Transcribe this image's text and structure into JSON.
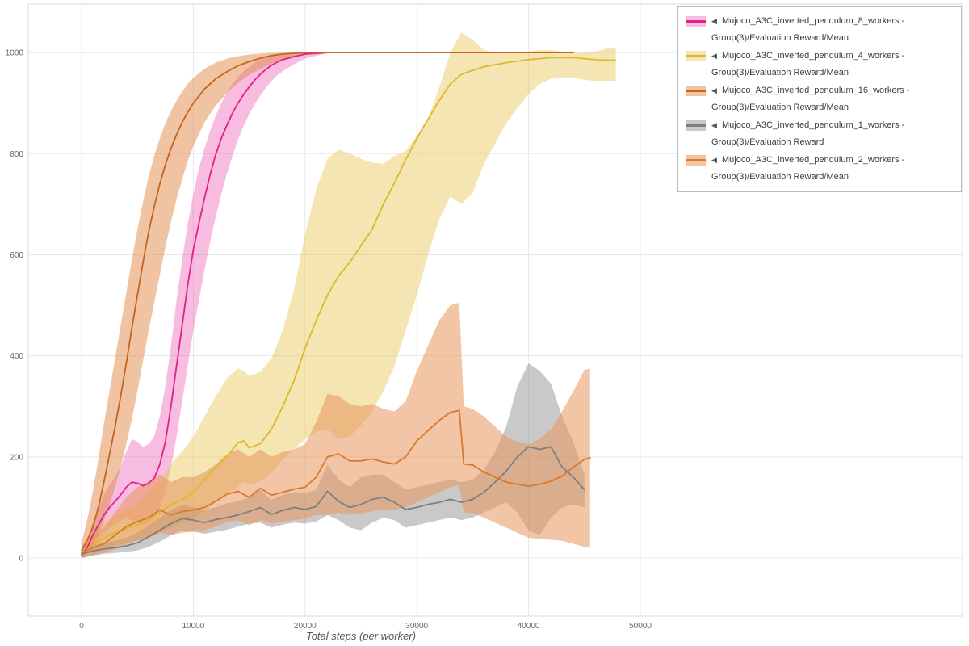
{
  "chart_data": {
    "type": "line",
    "title": "",
    "xlabel": "Total steps (per worker)",
    "ylabel": "",
    "xlim": [
      -4770,
      78830
    ],
    "ylim": [
      -115,
      1096
    ],
    "grid": true,
    "x_ticks": [
      0,
      10000,
      20000,
      30000,
      40000,
      50000
    ],
    "x_tick_labels": [
      "0",
      "10000",
      "20000",
      "30000",
      "40000",
      "50000"
    ],
    "y_ticks": [
      0,
      200,
      400,
      600,
      800,
      1000
    ],
    "y_tick_labels": [
      "0",
      "200",
      "400",
      "600",
      "800",
      "1000"
    ],
    "legend": {
      "position": "top-right",
      "expander_glyph": "◀"
    },
    "series": [
      {
        "name": "Mujoco_A3C_inverted_pendulum_8_workers - Group(3)/Evaluation Reward/Mean",
        "color": "#e0218a",
        "band_color": "rgba(232,62,164,0.35)",
        "x": [
          0,
          500,
          1000,
          1500,
          2000,
          2500,
          3000,
          3500,
          4000,
          4500,
          5000,
          5500,
          6000,
          6500,
          7000,
          7500,
          8000,
          8500,
          9000,
          9500,
          10000,
          10500,
          11000,
          11500,
          12000,
          12500,
          13000,
          13500,
          14000,
          14500,
          15000,
          15500,
          16000,
          16500,
          17000,
          17500,
          18000,
          19000,
          20000,
          22000,
          24000,
          26000,
          28000,
          30000,
          32000,
          34000,
          36000,
          38000,
          40000,
          42000,
          44000
        ],
        "mean": [
          5,
          20,
          45,
          65,
          85,
          100,
          112,
          125,
          140,
          150,
          148,
          143,
          148,
          158,
          185,
          230,
          300,
          380,
          460,
          540,
          610,
          662,
          712,
          758,
          798,
          830,
          856,
          880,
          900,
          917,
          932,
          946,
          957,
          967,
          975,
          981,
          986,
          992,
          997,
          1000,
          1000,
          1000,
          1000,
          1000,
          1000,
          1000,
          1000,
          1000,
          1000,
          1000,
          1000
        ],
        "low": [
          0,
          8,
          20,
          35,
          50,
          60,
          68,
          75,
          80,
          75,
          70,
          65,
          70,
          80,
          100,
          130,
          180,
          240,
          310,
          380,
          450,
          510,
          570,
          625,
          675,
          720,
          760,
          795,
          828,
          855,
          878,
          898,
          915,
          930,
          944,
          955,
          963,
          977,
          988,
          999,
          1000,
          1000,
          1000,
          1000,
          1000,
          1000,
          1000,
          1000,
          1000,
          1000,
          1000
        ],
        "high": [
          12,
          35,
          70,
          100,
          125,
          145,
          160,
          180,
          210,
          235,
          230,
          220,
          225,
          240,
          280,
          340,
          420,
          510,
          590,
          660,
          720,
          770,
          810,
          845,
          875,
          900,
          920,
          938,
          952,
          963,
          972,
          980,
          986,
          991,
          995,
          997,
          998,
          1000,
          1000,
          1000,
          1000,
          1000,
          1000,
          1000,
          1000,
          1000,
          1000,
          1000,
          1000,
          1000,
          1000
        ]
      },
      {
        "name": "Mujoco_A3C_inverted_pendulum_4_workers - Group(3)/Evaluation Reward/Mean",
        "color": "#ddb92a",
        "band_color": "rgba(230,198,85,0.45)",
        "x": [
          0,
          1000,
          2000,
          3000,
          4000,
          5000,
          6000,
          7000,
          8000,
          9000,
          10000,
          11000,
          12000,
          13000,
          14000,
          14500,
          15000,
          16000,
          17000,
          18000,
          19000,
          20000,
          21000,
          22000,
          23000,
          24000,
          25000,
          26000,
          27000,
          28000,
          29000,
          30000,
          31000,
          32000,
          33000,
          34000,
          35000,
          36000,
          37000,
          38000,
          39000,
          40000,
          41000,
          42000,
          43000,
          44000,
          45000,
          46000,
          47000,
          47800
        ],
        "mean": [
          8,
          25,
          40,
          50,
          58,
          65,
          75,
          90,
          105,
          115,
          130,
          155,
          180,
          200,
          228,
          232,
          218,
          226,
          255,
          300,
          350,
          415,
          470,
          520,
          558,
          585,
          618,
          650,
          700,
          742,
          788,
          830,
          868,
          905,
          938,
          957,
          965,
          972,
          976,
          980,
          983,
          986,
          988,
          990,
          990,
          990,
          988,
          986,
          985,
          985
        ],
        "low": [
          0,
          8,
          15,
          25,
          30,
          35,
          40,
          50,
          60,
          68,
          78,
          92,
          110,
          126,
          142,
          150,
          145,
          152,
          168,
          195,
          215,
          235,
          250,
          255,
          235,
          240,
          262,
          290,
          330,
          380,
          450,
          520,
          600,
          670,
          715,
          700,
          722,
          780,
          820,
          860,
          890,
          918,
          938,
          948,
          950,
          950,
          946,
          944,
          944,
          944
        ],
        "high": [
          18,
          50,
          70,
          85,
          95,
          110,
          130,
          155,
          185,
          210,
          240,
          280,
          320,
          355,
          375,
          370,
          360,
          368,
          395,
          450,
          530,
          640,
          730,
          790,
          808,
          800,
          790,
          782,
          780,
          795,
          805,
          835,
          870,
          930,
          1000,
          1040,
          1025,
          1005,
          1000,
          1000,
          1000,
          1002,
          1005,
          1005,
          1002,
          1000,
          1000,
          1002,
          1008,
          1008
        ]
      },
      {
        "name": "Mujoco_A3C_inverted_pendulum_16_workers - Group(3)/Evaluation Reward/Mean",
        "color": "#c5641e",
        "band_color": "rgba(225,135,70,0.5)",
        "x": [
          0,
          500,
          1000,
          1500,
          2000,
          2500,
          3000,
          3500,
          4000,
          4500,
          5000,
          5500,
          6000,
          6500,
          7000,
          7500,
          8000,
          8500,
          9000,
          9500,
          10000,
          11000,
          12000,
          13000,
          14000,
          15000,
          16000,
          17000,
          18000,
          20000,
          22000,
          24000,
          26000,
          28000,
          30000,
          32000,
          34000,
          36000,
          38000,
          40000,
          42000,
          44000
        ],
        "mean": [
          15,
          35,
          60,
          100,
          150,
          205,
          260,
          320,
          385,
          455,
          520,
          585,
          645,
          695,
          740,
          778,
          810,
          838,
          862,
          882,
          900,
          928,
          948,
          962,
          974,
          982,
          989,
          994,
          997,
          1000,
          1000,
          1000,
          1000,
          1000,
          1000,
          1000,
          1000,
          1000,
          1000,
          1000,
          1000,
          1000
        ],
        "low": [
          5,
          12,
          25,
          45,
          75,
          105,
          140,
          180,
          225,
          275,
          330,
          390,
          450,
          505,
          560,
          615,
          665,
          710,
          750,
          785,
          815,
          862,
          895,
          920,
          940,
          956,
          968,
          978,
          986,
          997,
          1000,
          1000,
          1000,
          1000,
          1000,
          1000,
          1000,
          1000,
          1000,
          1000,
          1000,
          1000
        ],
        "high": [
          30,
          75,
          130,
          195,
          265,
          330,
          395,
          460,
          525,
          590,
          650,
          705,
          755,
          795,
          830,
          860,
          885,
          905,
          922,
          938,
          950,
          968,
          980,
          988,
          993,
          996,
          998,
          999,
          1000,
          1000,
          1000,
          1000,
          1000,
          1000,
          1000,
          1000,
          1000,
          1000,
          1000,
          1000,
          1000,
          1000
        ]
      },
      {
        "name": "Mujoco_A3C_inverted_pendulum_1_workers - Group(3)/Evaluation Reward",
        "color": "#7f7f7f",
        "band_color": "rgba(135,135,135,0.45)",
        "x": [
          0,
          1000,
          2000,
          3000,
          4000,
          5000,
          6000,
          7000,
          8000,
          9000,
          10000,
          11000,
          12000,
          13000,
          14000,
          15000,
          16000,
          17000,
          18000,
          19000,
          20000,
          21000,
          22000,
          23000,
          24000,
          25000,
          26000,
          27000,
          28000,
          29000,
          30000,
          31000,
          32000,
          33000,
          34000,
          35000,
          36000,
          37000,
          38000,
          39000,
          40000,
          41000,
          42000,
          43000,
          44000,
          45000
        ],
        "mean": [
          8,
          14,
          18,
          20,
          24,
          30,
          42,
          55,
          68,
          78,
          75,
          70,
          76,
          80,
          85,
          92,
          100,
          86,
          94,
          100,
          96,
          102,
          132,
          112,
          100,
          106,
          116,
          120,
          110,
          96,
          100,
          106,
          110,
          116,
          110,
          116,
          130,
          150,
          172,
          200,
          220,
          215,
          220,
          180,
          160,
          135
        ],
        "low": [
          0,
          5,
          8,
          10,
          12,
          15,
          22,
          32,
          45,
          55,
          52,
          48,
          52,
          56,
          62,
          68,
          70,
          60,
          66,
          70,
          68,
          72,
          85,
          75,
          60,
          55,
          70,
          80,
          75,
          60,
          65,
          70,
          75,
          80,
          75,
          80,
          90,
          100,
          110,
          90,
          55,
          45,
          80,
          100,
          105,
          100
        ],
        "high": [
          16,
          26,
          30,
          34,
          40,
          50,
          65,
          80,
          95,
          105,
          100,
          95,
          100,
          108,
          112,
          120,
          135,
          115,
          125,
          130,
          128,
          135,
          185,
          155,
          140,
          160,
          165,
          165,
          150,
          135,
          140,
          145,
          150,
          155,
          150,
          155,
          175,
          210,
          260,
          340,
          385,
          370,
          345,
          280,
          230,
          165
        ]
      },
      {
        "name": "Mujoco_A3C_inverted_pendulum_2_workers - Group(3)/Evaluation Reward/Mean",
        "color": "#d8792c",
        "band_color": "rgba(232,150,92,0.55)",
        "x": [
          0,
          1000,
          2000,
          3000,
          4000,
          5000,
          6000,
          7000,
          8000,
          9000,
          10000,
          11000,
          12000,
          13000,
          14000,
          15000,
          16000,
          17000,
          18000,
          19000,
          20000,
          21000,
          22000,
          23000,
          24000,
          25000,
          26000,
          27000,
          28000,
          29000,
          30000,
          31000,
          32000,
          33000,
          33800,
          34200,
          35000,
          36000,
          37000,
          38000,
          39000,
          40000,
          41000,
          42000,
          43000,
          44000,
          45000,
          45500
        ],
        "mean": [
          10,
          20,
          28,
          45,
          62,
          72,
          80,
          95,
          85,
          92,
          95,
          100,
          112,
          126,
          132,
          120,
          138,
          124,
          130,
          136,
          140,
          160,
          200,
          206,
          192,
          192,
          196,
          190,
          186,
          200,
          232,
          252,
          272,
          288,
          292,
          186,
          184,
          170,
          160,
          150,
          146,
          142,
          146,
          152,
          162,
          180,
          195,
          198
        ],
        "low": [
          0,
          5,
          10,
          18,
          28,
          35,
          40,
          50,
          45,
          50,
          52,
          55,
          62,
          70,
          75,
          65,
          75,
          68,
          72,
          75,
          78,
          85,
          85,
          90,
          85,
          88,
          92,
          95,
          95,
          100,
          110,
          120,
          130,
          140,
          145,
          90,
          88,
          80,
          70,
          60,
          50,
          40,
          38,
          36,
          34,
          28,
          22,
          20
        ],
        "high": [
          25,
          45,
          60,
          90,
          120,
          140,
          150,
          165,
          150,
          160,
          160,
          170,
          185,
          205,
          215,
          200,
          215,
          200,
          210,
          215,
          225,
          270,
          325,
          320,
          305,
          300,
          305,
          295,
          290,
          310,
          370,
          420,
          470,
          500,
          505,
          300,
          295,
          280,
          260,
          240,
          230,
          225,
          235,
          255,
          290,
          330,
          372,
          375
        ]
      }
    ]
  }
}
